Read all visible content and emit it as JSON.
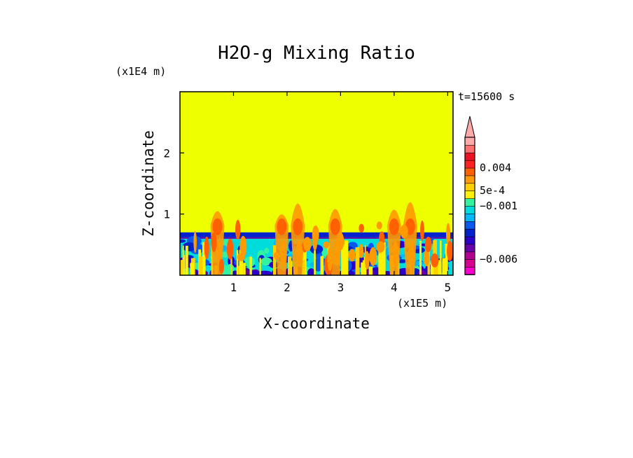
{
  "chart_data": {
    "type": "heatmap",
    "title": "H2O-g Mixing Ratio",
    "xlabel": "X-coordinate",
    "ylabel": "Z-coordinate",
    "x_unit": "(x1E5 m)",
    "y_unit": "(x1E4 m)",
    "time_label": "t=15600 s",
    "xlim": [
      0,
      5.1
    ],
    "ylim": [
      0,
      3.0
    ],
    "x_ticks": [
      1,
      2,
      3,
      4,
      5
    ],
    "y_ticks": [
      1,
      2
    ],
    "grid": false,
    "background_level_color": "#eeff00",
    "boundary_layer_top": 0.7,
    "plumes_x": [
      0.7,
      1.9,
      2.2,
      2.9,
      4.0,
      4.3
    ],
    "colorbar": {
      "colors": [
        "#ff00cc",
        "#d8008e",
        "#b20090",
        "#6a00a8",
        "#2a00c8",
        "#0022cc",
        "#0b58ee",
        "#00b8ff",
        "#00dcdc",
        "#33f2a0",
        "#fff200",
        "#ffd000",
        "#ff9a00",
        "#ff6000",
        "#ff2222",
        "#ee1122",
        "#ff7070",
        "#ffaaaa"
      ],
      "tick_labels": [
        "0.004",
        "5e-4",
        "−0.001",
        "−0.006"
      ],
      "extend": "max"
    }
  }
}
